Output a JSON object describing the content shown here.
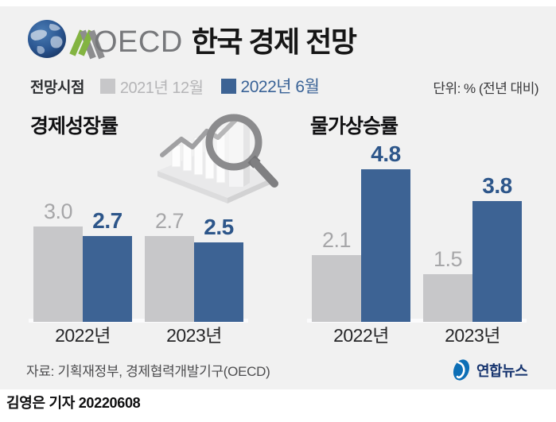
{
  "header": {
    "title_oecd": "OECD",
    "title_korean": "한국 경제 전망"
  },
  "legend": {
    "label": "전망시점",
    "items": [
      {
        "label": "2021년 12월",
        "swatch": "#c7c7c9"
      },
      {
        "label": "2022년 6월",
        "swatch": "#3d6394"
      }
    ],
    "unit": "단위: % (전년 대비)"
  },
  "chart_data": [
    {
      "type": "bar",
      "title": "경제성장률",
      "categories": [
        "2022년",
        "2023년"
      ],
      "series": [
        {
          "name": "2021년 12월",
          "color": "#c7c7c9",
          "values": [
            3.0,
            2.7
          ]
        },
        {
          "name": "2022년 6월",
          "color": "#3d6394",
          "values": [
            2.7,
            2.5
          ]
        }
      ],
      "unit": "% (전년 대비)",
      "value_labels": true,
      "ylim": [
        0,
        5
      ],
      "legend_position": "top"
    },
    {
      "type": "bar",
      "title": "물가상승률",
      "categories": [
        "2022년",
        "2023년"
      ],
      "series": [
        {
          "name": "2021년 12월",
          "color": "#c7c7c9",
          "values": [
            2.1,
            1.5
          ]
        },
        {
          "name": "2022년 6월",
          "color": "#3d6394",
          "values": [
            4.8,
            3.8
          ]
        }
      ],
      "unit": "% (전년 대비)",
      "value_labels": true,
      "ylim": [
        0,
        5
      ],
      "legend_position": "top"
    }
  ],
  "icons": {
    "oecd_globe": "globe-icon",
    "oecd_chevrons": "double-chevron-icon",
    "illustration": "magnifier-over-bar-chart-icon",
    "yonhap": "yonhap-swirl-icon"
  },
  "footer": {
    "source": "자료: 기획재정부, 경제협력개발기구(OECD)",
    "agency_name": "연합뉴스",
    "byline": "김영은 기자 20220608"
  },
  "colors": {
    "panel_bg": "#f1f1f1",
    "bar_dec_2021": "#c7c7c9",
    "bar_jun_2022": "#3d6394",
    "label_dec_2021": "#a6a6a8",
    "label_jun_2022": "#2d568a",
    "legend_gray_text": "#b5b5b7",
    "legend_blue_text": "#3a6397",
    "yonhap_blue": "#0d6fb6",
    "yonhap_navy": "#15336e"
  }
}
